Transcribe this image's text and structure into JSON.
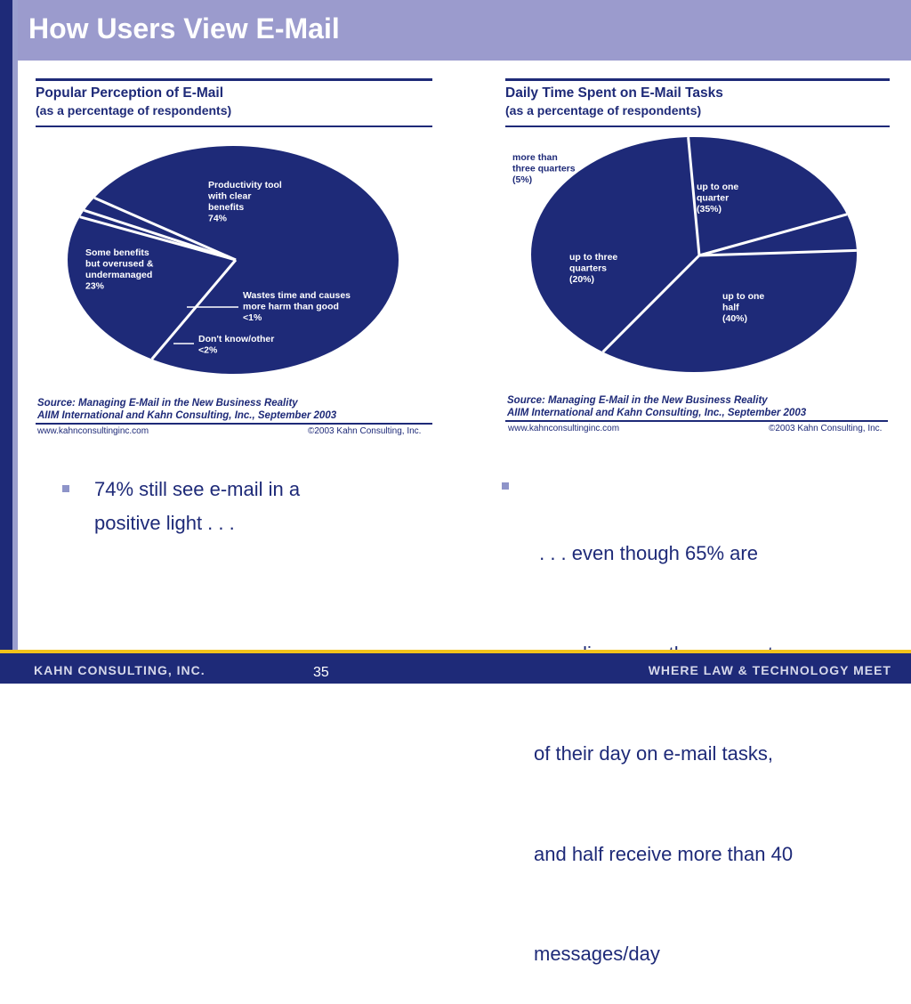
{
  "slide": {
    "title": "How Users View E-Mail",
    "page_number": "35",
    "footer_left": "KAHN CONSULTING, INC.",
    "footer_right": "WHERE LAW & TECHNOLOGY MEET"
  },
  "colors": {
    "navy": "#1e2a78",
    "lavender": "#9b9bcd",
    "gold": "#f2c21b",
    "white": "#ffffff"
  },
  "chart_data": [
    {
      "type": "pie",
      "title": "Popular Perception of E-Mail",
      "subtitle": "(as a percentage of respondents)",
      "categories": [
        "Productivity tool with clear benefits",
        "Some benefits but overused & undermanaged",
        "Wastes time and causes more harm than good",
        "Don't know/other"
      ],
      "values": [
        74,
        23,
        1,
        2
      ],
      "labels": [
        [
          "Productivity tool",
          "with clear",
          "benefits",
          "74%"
        ],
        [
          "Some benefits",
          "but overused &",
          "undermanaged",
          "23%"
        ],
        [
          "Wastes time and causes",
          "more harm than good",
          "<1%"
        ],
        [
          "Don't know/other",
          "<2%"
        ]
      ],
      "source_line1": "Source: Managing E-Mail in the New Business Reality",
      "source_line2": "AIIM International and Kahn Consulting, Inc., September 2003",
      "url": "www.kahnconsultinginc.com",
      "copyright": "©2003 Kahn Consulting, Inc."
    },
    {
      "type": "pie",
      "title": "Daily Time Spent on E-Mail Tasks",
      "subtitle": "(as a percentage of respondents)",
      "categories": [
        "up to one quarter",
        "up to one half",
        "up to three quarters",
        "more than three quarters"
      ],
      "values": [
        35,
        40,
        20,
        5
      ],
      "labels": [
        [
          "up to one",
          "quarter",
          "(35%)"
        ],
        [
          "up to one",
          "half",
          "(40%)"
        ],
        [
          "up to three",
          "quarters",
          "(20%)"
        ],
        [
          "more than",
          "three quarters",
          "(5%)"
        ]
      ],
      "source_line1": "Source: Managing E-Mail in the New Business Reality",
      "source_line2": "AIIM International and Kahn Consulting, Inc., September 2003",
      "url": "www.kahnconsultinginc.com",
      "copyright": "©2003 Kahn Consulting, Inc."
    }
  ],
  "bullets": [
    {
      "lines": [
        "74% still see e-mail in a",
        "positive light . . ."
      ]
    },
    {
      "lines": [
        " . . . even though 65% are",
        "spending more than a quarter",
        "of their day on e-mail tasks,",
        "and half receive more than 40",
        "messages/day"
      ]
    }
  ]
}
